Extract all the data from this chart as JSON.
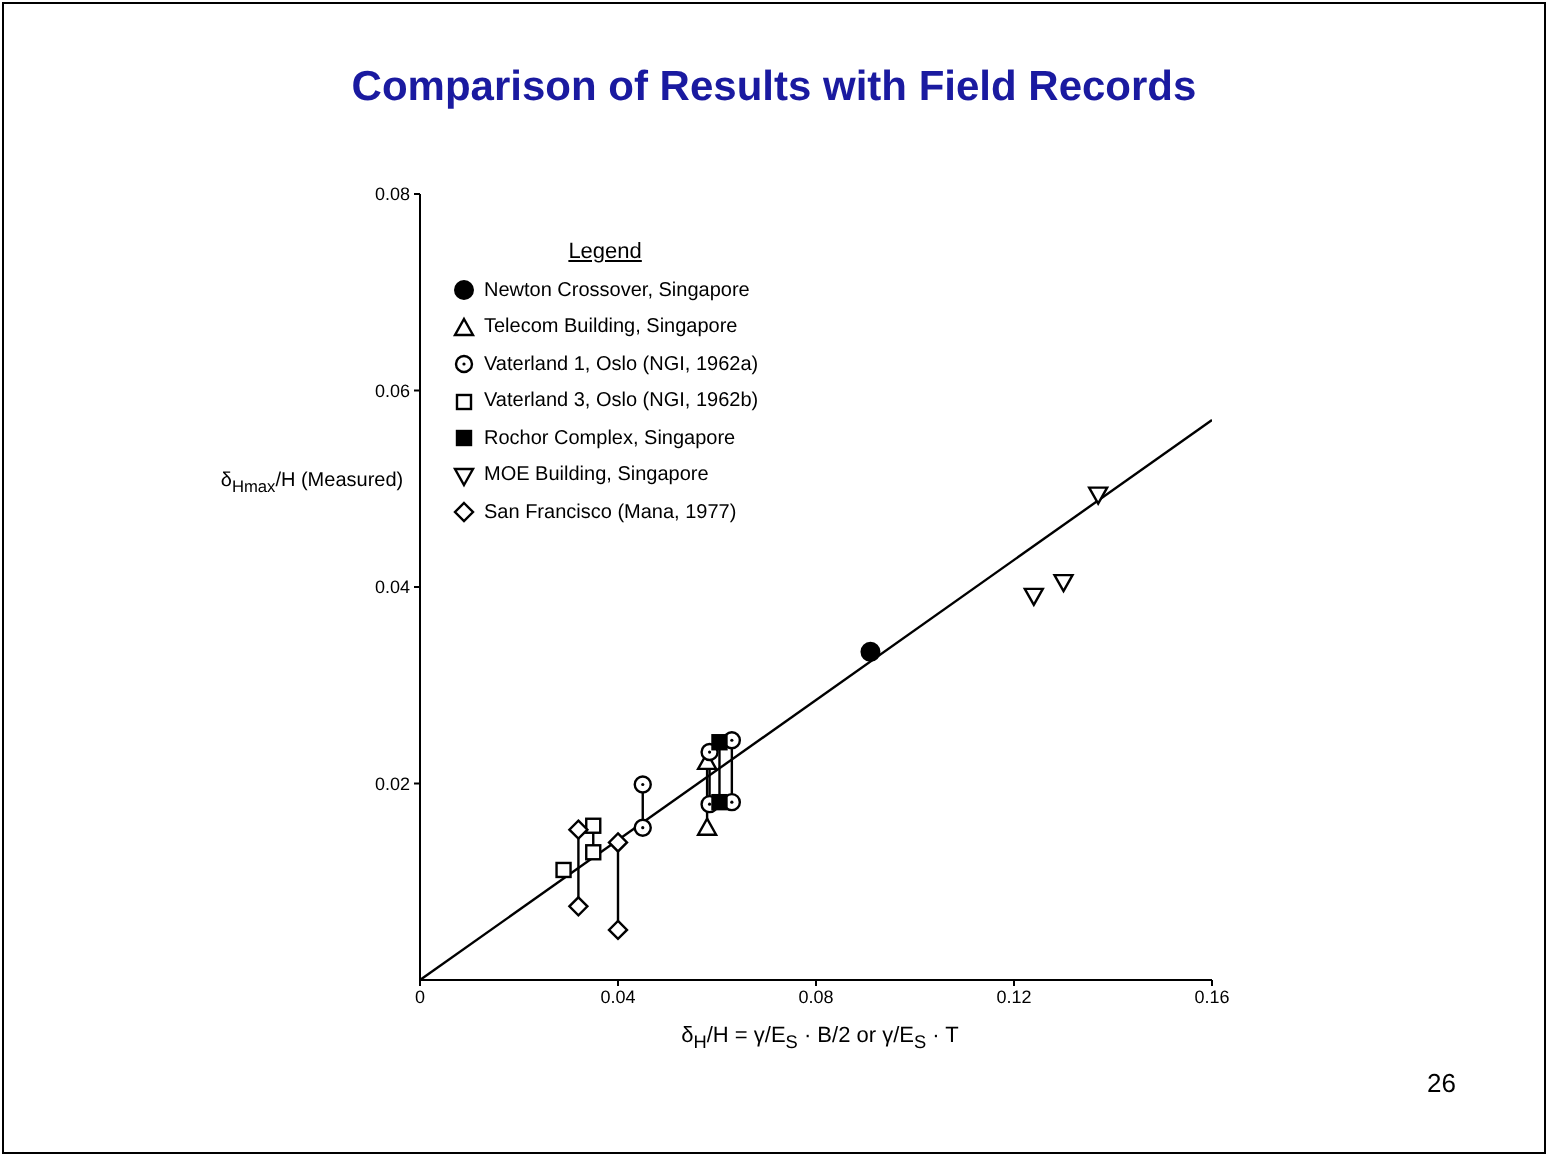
{
  "chart_data": {
    "type": "scatter",
    "title": "Comparison of Results with Field Records",
    "xlabel": "δ$_{H}$/H = γ/E$_{S}$ · B/2  or  γ/E$_{S}$ · T",
    "ylabel": "δ$_{Hmax}$/H (Measured)",
    "legend_title": "Legend",
    "annotations": [
      "26"
    ],
    "xlim": [
      0,
      0.16
    ],
    "xticks": [
      0,
      0.04,
      0.08,
      0.12,
      0.16
    ],
    "ylim": [
      0,
      0.08
    ],
    "yticks": [
      0.02,
      0.04,
      0.06,
      0.08
    ],
    "grid": false,
    "legend": "top left",
    "series": [
      {
        "name": "Newton Crossover, Singapore",
        "color": "#000000",
        "marker": "circle",
        "x": [
          0.091
        ],
        "values": [
          0.0334
        ]
      },
      {
        "name": "Telecom Building, Singapore",
        "color": "#000000",
        "marker": "triangle",
        "x": [
          0.058,
          0.058
        ],
        "values": [
          0.0222,
          0.0155
        ]
      },
      {
        "name": "Vaterland 1, Oslo (NGI, 1962a)",
        "color": "#000000",
        "marker": "circle-open",
        "x": [
          0.045,
          0.045,
          0.0585,
          0.0585,
          0.063,
          0.063
        ],
        "values": [
          0.0199,
          0.0155,
          0.0232,
          0.0179,
          0.0244,
          0.0181
        ]
      },
      {
        "name": "Vaterland 3, Oslo (NGI, 1962b)",
        "color": "#000000",
        "marker": "square-open",
        "x": [
          0.029,
          0.035,
          0.035
        ],
        "values": [
          0.0112,
          0.0157,
          0.013
        ]
      },
      {
        "name": "Rochor Complex, Singapore",
        "color": "#000000",
        "marker": "square",
        "x": [
          0.0605,
          0.0605
        ],
        "values": [
          0.0242,
          0.0181
        ]
      },
      {
        "name": "MOE Building, Singapore",
        "color": "#000000",
        "marker": "triangle-down",
        "x": [
          0.137,
          0.124,
          0.13
        ],
        "values": [
          0.0494,
          0.0391,
          0.0405
        ]
      },
      {
        "name": "San Francisco (Mana, 1977)",
        "color": "#000000",
        "marker": "diamond",
        "x": [
          0.032,
          0.032,
          0.04,
          0.04
        ],
        "values": [
          0.0153,
          0.0075,
          0.014,
          0.0051
        ]
      },
      {
        "type": "line",
        "color": "#000000",
        "x": [
          0.035,
          0.035
        ],
        "values": [
          0.0157,
          0.013
        ]
      },
      {
        "type": "line",
        "color": "#000000",
        "x": [
          0.032,
          0.032
        ],
        "values": [
          0.0153,
          0.0075
        ]
      },
      {
        "type": "line",
        "color": "#000000",
        "x": [
          0.04,
          0.04
        ],
        "values": [
          0.014,
          0.0051
        ]
      },
      {
        "type": "line",
        "color": "#000000",
        "x": [
          0.045,
          0.045
        ],
        "values": [
          0.0199,
          0.0155
        ]
      },
      {
        "type": "line",
        "color": "#000000",
        "x": [
          0.058,
          0.058
        ],
        "values": [
          0.0222,
          0.0155
        ]
      },
      {
        "type": "line",
        "color": "#000000",
        "x": [
          0.0585,
          0.0585
        ],
        "values": [
          0.0232,
          0.0179
        ]
      },
      {
        "type": "line",
        "color": "#000000",
        "x": [
          0.0605,
          0.0605
        ],
        "values": [
          0.0242,
          0.0181
        ]
      },
      {
        "type": "line",
        "color": "#000000",
        "x": [
          0.063,
          0.063
        ],
        "values": [
          0.0244,
          0.0181
        ]
      },
      {
        "type": "line",
        "color": "#000000",
        "x": [
          0,
          0.16
        ],
        "values": [
          0,
          0.057
        ]
      }
    ]
  }
}
